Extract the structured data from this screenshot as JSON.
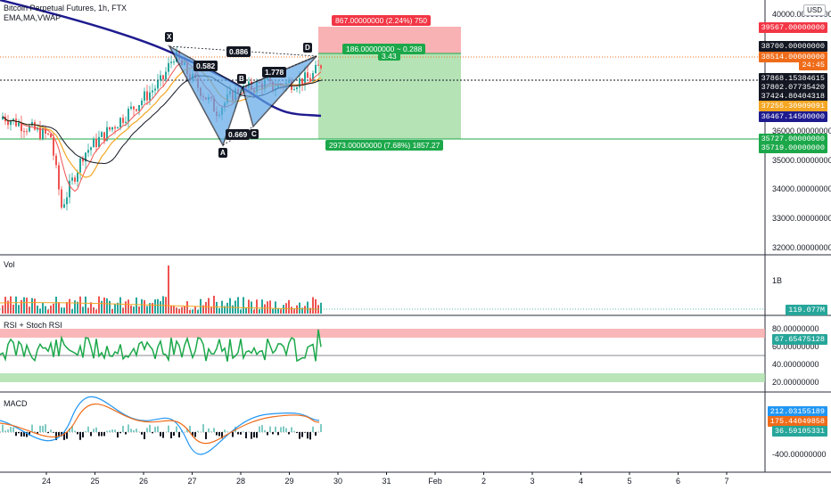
{
  "header": {
    "symbol_line": "Bitcoin Perpetual Futures, 1h, FTX",
    "indicators_line": "EMA,MA,VWAP",
    "currency_button": "USD"
  },
  "panes": {
    "volume_label": "Vol",
    "volume_axis_label": "1B",
    "rsi_label": "RSI + Stoch RSI",
    "macd_label": "MACD"
  },
  "price_axis": {
    "ticks": [
      "40000.00000000",
      "36000.00000000",
      "35000.00000000",
      "34000.00000000",
      "33000.00000000",
      "32000.00000000"
    ],
    "tags": [
      {
        "text": "39567.00000000",
        "color": "#f23645"
      },
      {
        "text": "38700.00000000",
        "color": "#131722"
      },
      {
        "text": "38514.00000000",
        "color": "#ef6c1a"
      },
      {
        "text": "24:45",
        "color": "#ef6c1a"
      },
      {
        "text": "37868.15384615",
        "color": "#131722"
      },
      {
        "text": "37802.07735420",
        "color": "#131722"
      },
      {
        "text": "37424.80404318",
        "color": "#131722"
      },
      {
        "text": "37255.30909091",
        "color": "#f5a623"
      },
      {
        "text": "36467.14500000",
        "color": "#1e1b8f"
      },
      {
        "text": "35727.00000000",
        "color": "#1ca84a"
      },
      {
        "text": "35719.00000000",
        "color": "#1ca84a"
      }
    ]
  },
  "volume_axis": {
    "tag": "119.077M",
    "tag_color": "#26a69a"
  },
  "rsi_axis": {
    "ticks": [
      "80.00000000",
      "60.00000000",
      "40.00000000",
      "20.00000000"
    ],
    "tag": "67.65475128",
    "tag_color": "#26a69a"
  },
  "macd_axis": {
    "ticks": [
      "-400.00000000"
    ],
    "tags": [
      {
        "text": "212.03155189",
        "color": "#2196f3"
      },
      {
        "text": "175.44049858",
        "color": "#ef6c1a"
      },
      {
        "text": "36.59105331",
        "color": "#26a69a"
      }
    ]
  },
  "time_axis": {
    "labels": [
      "24",
      "25",
      "26",
      "27",
      "28",
      "29",
      "30",
      "31",
      "Feb",
      "2",
      "3",
      "4",
      "5",
      "6",
      "7"
    ]
  },
  "pattern": {
    "points": [
      "X",
      "A",
      "B",
      "C",
      "D"
    ],
    "ratios": [
      "0.886",
      "0.582",
      "1.778",
      "0.669"
    ]
  },
  "risk_reward": {
    "stop_text": "867.00000000 (2.24%) 750",
    "entry_text_1": "186.00000000 ~ 0.288",
    "entry_text_2": "3.43",
    "target_text": "2973.00000000 (7.68%) 1857.27"
  },
  "colors": {
    "up": "#26a69a",
    "down": "#ef5350",
    "pattern_fill": "#5fa8e8",
    "loss_zone": "#f8a5a7",
    "profit_zone": "#a8dea8",
    "ma_dark": "#1e1b8f"
  }
}
